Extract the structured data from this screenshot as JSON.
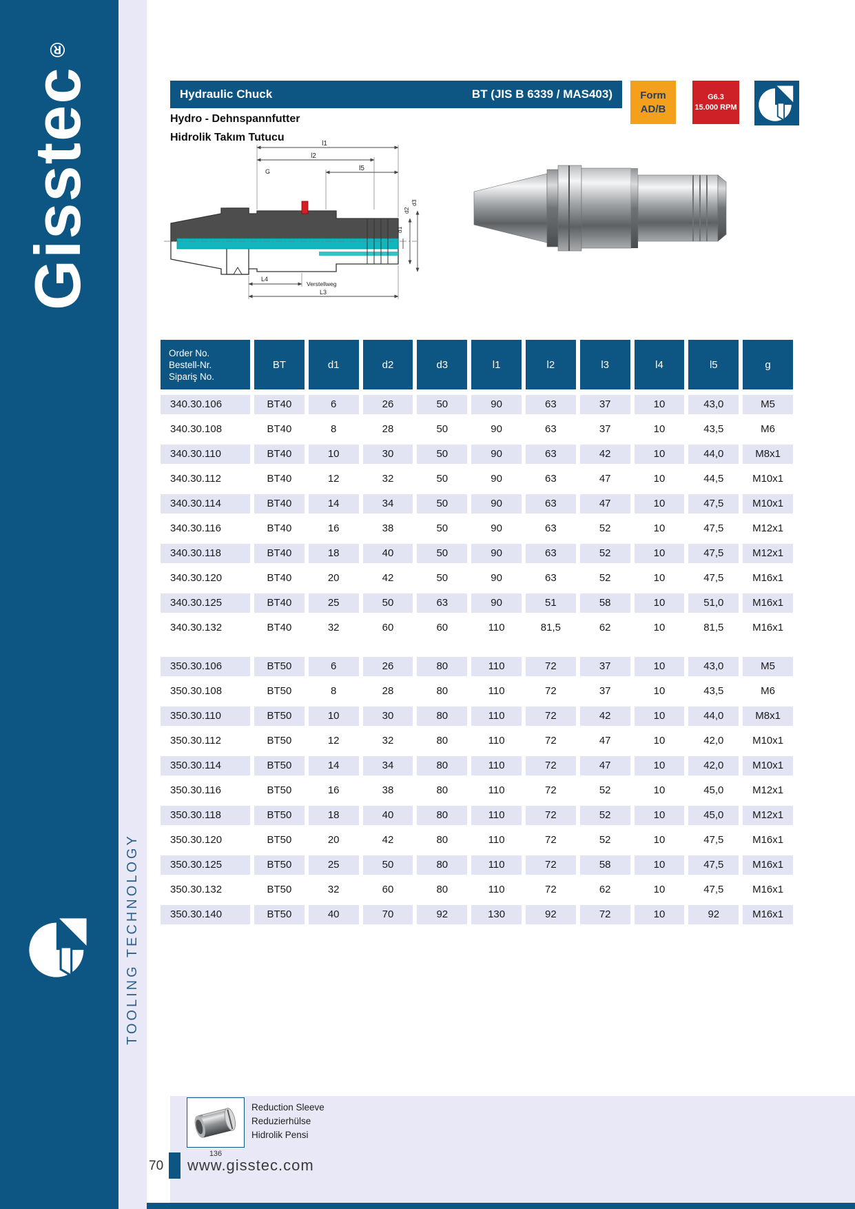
{
  "sidebar": {
    "brand": "Gisstec",
    "reg_mark": "®",
    "vertical_text": "TOOLING TECHNOLOGY"
  },
  "header": {
    "title": "Hydraulic Chuck",
    "standard": "BT (JIS B 6339 / MAS403)",
    "subtitle_de": "Hydro - Dehnspannfutter",
    "subtitle_tr": "Hidrolik Takım Tutucu",
    "form_badge": {
      "line1": "Form",
      "line2": "AD/B"
    },
    "speed_badge": {
      "line1": "G6.3",
      "line2": "15.000 RPM"
    }
  },
  "drawing": {
    "labels": {
      "l1": "l1",
      "l2": "l2",
      "l5": "l5",
      "g_label": "G",
      "d1": "d1",
      "d2": "d2",
      "d3": "d3",
      "l4_label": "L4",
      "verstellweg": "Verstellweg",
      "l3_label": "L3"
    }
  },
  "table": {
    "order_header": [
      "Order No.",
      "Bestell-Nr.",
      "Sipariş No."
    ],
    "columns": [
      "BT",
      "d1",
      "d2",
      "d3",
      "l1",
      "l2",
      "l3",
      "l4",
      "l5",
      "g"
    ],
    "groups": [
      {
        "rows": [
          [
            "340.30.106",
            "BT40",
            "6",
            "26",
            "50",
            "90",
            "63",
            "37",
            "10",
            "43,0",
            "M5"
          ],
          [
            "340.30.108",
            "BT40",
            "8",
            "28",
            "50",
            "90",
            "63",
            "37",
            "10",
            "43,5",
            "M6"
          ],
          [
            "340.30.110",
            "BT40",
            "10",
            "30",
            "50",
            "90",
            "63",
            "42",
            "10",
            "44,0",
            "M8x1"
          ],
          [
            "340.30.112",
            "BT40",
            "12",
            "32",
            "50",
            "90",
            "63",
            "47",
            "10",
            "44,5",
            "M10x1"
          ],
          [
            "340.30.114",
            "BT40",
            "14",
            "34",
            "50",
            "90",
            "63",
            "47",
            "10",
            "47,5",
            "M10x1"
          ],
          [
            "340.30.116",
            "BT40",
            "16",
            "38",
            "50",
            "90",
            "63",
            "52",
            "10",
            "47,5",
            "M12x1"
          ],
          [
            "340.30.118",
            "BT40",
            "18",
            "40",
            "50",
            "90",
            "63",
            "52",
            "10",
            "47,5",
            "M12x1"
          ],
          [
            "340.30.120",
            "BT40",
            "20",
            "42",
            "50",
            "90",
            "63",
            "52",
            "10",
            "47,5",
            "M16x1"
          ],
          [
            "340.30.125",
            "BT40",
            "25",
            "50",
            "63",
            "90",
            "51",
            "58",
            "10",
            "51,0",
            "M16x1"
          ],
          [
            "340.30.132",
            "BT40",
            "32",
            "60",
            "60",
            "110",
            "81,5",
            "62",
            "10",
            "81,5",
            "M16x1"
          ]
        ]
      },
      {
        "rows": [
          [
            "350.30.106",
            "BT50",
            "6",
            "26",
            "80",
            "110",
            "72",
            "37",
            "10",
            "43,0",
            "M5"
          ],
          [
            "350.30.108",
            "BT50",
            "8",
            "28",
            "80",
            "110",
            "72",
            "37",
            "10",
            "43,5",
            "M6"
          ],
          [
            "350.30.110",
            "BT50",
            "10",
            "30",
            "80",
            "110",
            "72",
            "42",
            "10",
            "44,0",
            "M8x1"
          ],
          [
            "350.30.112",
            "BT50",
            "12",
            "32",
            "80",
            "110",
            "72",
            "47",
            "10",
            "42,0",
            "M10x1"
          ],
          [
            "350.30.114",
            "BT50",
            "14",
            "34",
            "80",
            "110",
            "72",
            "47",
            "10",
            "42,0",
            "M10x1"
          ],
          [
            "350.30.116",
            "BT50",
            "16",
            "38",
            "80",
            "110",
            "72",
            "52",
            "10",
            "45,0",
            "M12x1"
          ],
          [
            "350.30.118",
            "BT50",
            "18",
            "40",
            "80",
            "110",
            "72",
            "52",
            "10",
            "45,0",
            "M12x1"
          ],
          [
            "350.30.120",
            "BT50",
            "20",
            "42",
            "80",
            "110",
            "72",
            "52",
            "10",
            "47,5",
            "M16x1"
          ],
          [
            "350.30.125",
            "BT50",
            "25",
            "50",
            "80",
            "110",
            "72",
            "58",
            "10",
            "47,5",
            "M16x1"
          ],
          [
            "350.30.132",
            "BT50",
            "32",
            "60",
            "80",
            "110",
            "72",
            "62",
            "10",
            "47,5",
            "M16x1"
          ],
          [
            "350.30.140",
            "BT50",
            "40",
            "70",
            "92",
            "130",
            "92",
            "72",
            "10",
            "92",
            "M16x1"
          ]
        ]
      }
    ]
  },
  "footnote": {
    "sleeve_captions": [
      "Reduction Sleeve",
      "Reduzierhülse",
      "Hidrolik Pensi"
    ],
    "sleeve_ref": "136"
  },
  "footer": {
    "page_number": "70",
    "website": "www.gisstec.com"
  },
  "colors": {
    "brand_blue": "#0d5582",
    "accent_orange": "#f3a01c",
    "accent_red": "#ce2127",
    "panel_lavender": "#e9e8f6",
    "row_alt": "#e2e4f3",
    "drawing_teal": "#10b7c0"
  }
}
